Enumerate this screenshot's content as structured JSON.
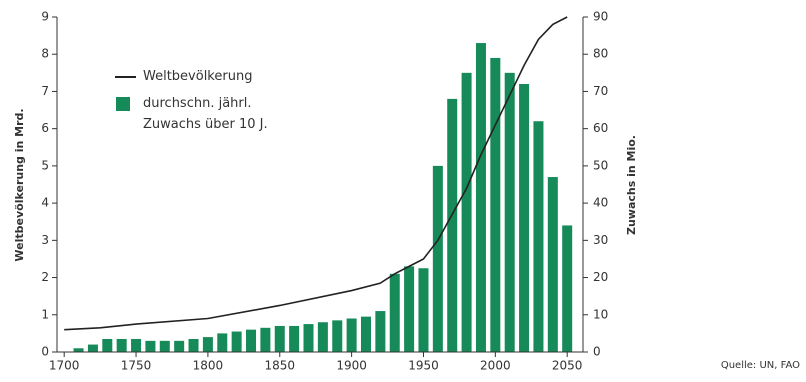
{
  "chart_data": {
    "type": "combo",
    "y_label": "Weltbevölkerung in Mrd.",
    "y2_label": "Zuwachs in Mio.",
    "source": "Quelle: UN, FAO",
    "xlim": [
      1695,
      2061
    ],
    "xticks": [
      1700,
      1750,
      1800,
      1850,
      1900,
      1950,
      2000,
      2050
    ],
    "ylim": [
      0,
      9
    ],
    "yticks": [
      0,
      1,
      2,
      3,
      4,
      5,
      6,
      7,
      8,
      9
    ],
    "y2lim": [
      0,
      90
    ],
    "y2ticks": [
      0,
      10,
      20,
      30,
      40,
      50,
      60,
      70,
      80,
      90
    ],
    "series": [
      {
        "name": "Weltbevölkerung",
        "type": "line",
        "color": "#222222",
        "x": [
          1700,
          1725,
          1750,
          1800,
          1850,
          1900,
          1920,
          1930,
          1940,
          1950,
          1960,
          1970,
          1980,
          1990,
          2000,
          2010,
          2020,
          2030,
          2040,
          2050
        ],
        "values": [
          0.6,
          0.65,
          0.75,
          0.9,
          1.25,
          1.65,
          1.85,
          2.1,
          2.3,
          2.5,
          3.0,
          3.7,
          4.4,
          5.3,
          6.1,
          6.9,
          7.7,
          8.4,
          8.8,
          9.0
        ]
      },
      {
        "name": "durchschn. jährl. Zuwachs über 10 J.",
        "type": "bar",
        "axis": "y2",
        "color": "#168a58",
        "x": [
          1710,
          1720,
          1730,
          1740,
          1750,
          1760,
          1770,
          1780,
          1790,
          1800,
          1810,
          1820,
          1830,
          1840,
          1850,
          1860,
          1870,
          1880,
          1890,
          1900,
          1910,
          1920,
          1930,
          1940,
          1950,
          1960,
          1970,
          1980,
          1990,
          2000,
          2010,
          2020,
          2030,
          2040,
          2050
        ],
        "values": [
          1,
          2,
          3.5,
          3.5,
          3.5,
          3,
          3,
          3,
          3.5,
          4,
          5,
          5.5,
          6,
          6.5,
          7,
          7,
          7.5,
          8,
          8.5,
          9,
          9.5,
          11,
          21,
          23,
          22.5,
          50,
          68,
          75,
          83,
          79,
          75,
          72,
          62,
          47,
          34
        ]
      }
    ]
  }
}
